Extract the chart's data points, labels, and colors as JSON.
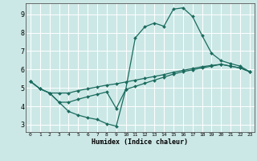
{
  "xlabel": "Humidex (Indice chaleur)",
  "background_color": "#cce8e6",
  "grid_color": "#ffffff",
  "line_color": "#1a6b5e",
  "xlim": [
    -0.5,
    23.5
  ],
  "ylim": [
    2.6,
    9.6
  ],
  "yticks": [
    3,
    4,
    5,
    6,
    7,
    8,
    9
  ],
  "xticks": [
    0,
    1,
    2,
    3,
    4,
    5,
    6,
    7,
    8,
    9,
    10,
    11,
    12,
    13,
    14,
    15,
    16,
    17,
    18,
    19,
    20,
    21,
    22,
    23
  ],
  "series1_x": [
    0,
    1,
    2,
    3,
    4,
    5,
    6,
    7,
    8,
    9,
    10,
    11,
    12,
    13,
    14,
    15,
    16,
    17,
    18,
    19,
    20,
    21,
    22,
    23
  ],
  "series1_y": [
    5.35,
    4.95,
    4.72,
    4.22,
    3.72,
    3.52,
    3.38,
    3.28,
    3.05,
    2.92,
    4.92,
    7.72,
    8.32,
    8.52,
    8.35,
    9.28,
    9.35,
    8.88,
    7.85,
    6.88,
    6.48,
    6.32,
    6.18,
    5.88
  ],
  "series2_x": [
    0,
    1,
    2,
    3,
    4,
    5,
    6,
    7,
    8,
    9,
    10,
    11,
    12,
    13,
    14,
    15,
    16,
    17,
    18,
    19,
    20,
    21,
    22,
    23
  ],
  "series2_y": [
    5.35,
    4.95,
    4.72,
    4.72,
    4.72,
    4.85,
    4.95,
    5.05,
    5.15,
    5.22,
    5.32,
    5.42,
    5.52,
    5.62,
    5.72,
    5.85,
    5.95,
    6.05,
    6.15,
    6.22,
    6.28,
    6.18,
    6.08,
    5.88
  ],
  "series3_x": [
    0,
    1,
    2,
    3,
    4,
    5,
    6,
    7,
    8,
    9,
    10,
    11,
    12,
    13,
    14,
    15,
    16,
    17,
    18,
    19,
    20,
    21,
    22,
    23
  ],
  "series3_y": [
    5.35,
    4.95,
    4.72,
    4.22,
    4.22,
    4.38,
    4.52,
    4.65,
    4.78,
    3.88,
    4.92,
    5.08,
    5.25,
    5.42,
    5.58,
    5.75,
    5.88,
    5.98,
    6.08,
    6.18,
    6.28,
    6.18,
    6.08,
    5.88
  ]
}
